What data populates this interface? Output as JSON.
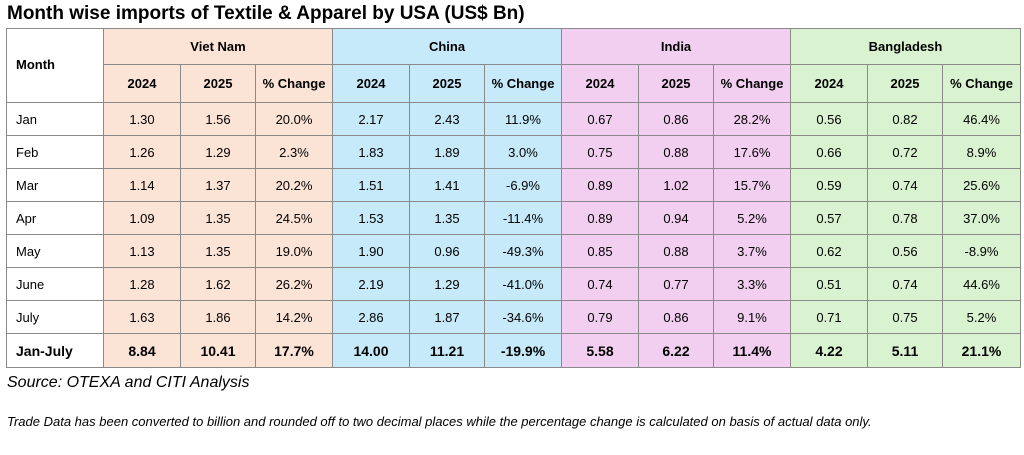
{
  "chart_data": {
    "type": "table",
    "title": "Month wise imports of Textile & Apparel by USA (US$ Bn)",
    "row_header_label": "Month",
    "sub_headers": [
      "2024",
      "2025",
      "% Change"
    ],
    "countries": [
      {
        "name": "Viet Nam",
        "color": "#fbe3d6",
        "rows": [
          [
            "1.30",
            "1.56",
            "20.0%"
          ],
          [
            "1.26",
            "1.29",
            "2.3%"
          ],
          [
            "1.14",
            "1.37",
            "20.2%"
          ],
          [
            "1.09",
            "1.35",
            "24.5%"
          ],
          [
            "1.13",
            "1.35",
            "19.0%"
          ],
          [
            "1.28",
            "1.62",
            "26.2%"
          ],
          [
            "1.63",
            "1.86",
            "14.2%"
          ]
        ],
        "total": [
          "8.84",
          "10.41",
          "17.7%"
        ]
      },
      {
        "name": "China",
        "color": "#c6eafa",
        "rows": [
          [
            "2.17",
            "2.43",
            "11.9%"
          ],
          [
            "1.83",
            "1.89",
            "3.0%"
          ],
          [
            "1.51",
            "1.41",
            "-6.9%"
          ],
          [
            "1.53",
            "1.35",
            "-11.4%"
          ],
          [
            "1.90",
            "0.96",
            "-49.3%"
          ],
          [
            "2.19",
            "1.29",
            "-41.0%"
          ],
          [
            "2.86",
            "1.87",
            "-34.6%"
          ]
        ],
        "total": [
          "14.00",
          "11.21",
          "-19.9%"
        ]
      },
      {
        "name": "India",
        "color": "#f2cff0",
        "rows": [
          [
            "0.67",
            "0.86",
            "28.2%"
          ],
          [
            "0.75",
            "0.88",
            "17.6%"
          ],
          [
            "0.89",
            "1.02",
            "15.7%"
          ],
          [
            "0.89",
            "0.94",
            "5.2%"
          ],
          [
            "0.85",
            "0.88",
            "3.7%"
          ],
          [
            "0.74",
            "0.77",
            "3.3%"
          ],
          [
            "0.79",
            "0.86",
            "9.1%"
          ]
        ],
        "total": [
          "5.58",
          "6.22",
          "11.4%"
        ]
      },
      {
        "name": "Bangladesh",
        "color": "#d9f2d0",
        "rows": [
          [
            "0.56",
            "0.82",
            "46.4%"
          ],
          [
            "0.66",
            "0.72",
            "8.9%"
          ],
          [
            "0.59",
            "0.74",
            "25.6%"
          ],
          [
            "0.57",
            "0.78",
            "37.0%"
          ],
          [
            "0.62",
            "0.56",
            "-8.9%"
          ],
          [
            "0.51",
            "0.74",
            "44.6%"
          ],
          [
            "0.71",
            "0.75",
            "5.2%"
          ]
        ],
        "total": [
          "4.22",
          "5.11",
          "21.1%"
        ]
      }
    ],
    "months": [
      "Jan",
      "Feb",
      "Mar",
      "Apr",
      "May",
      "June",
      "July"
    ],
    "total_label": "Jan-July"
  },
  "source": "Source: OTEXA and CITI Analysis",
  "note": "Trade Data has been converted to billion and rounded off to two decimal places while the percentage change is calculated on basis of actual data only."
}
